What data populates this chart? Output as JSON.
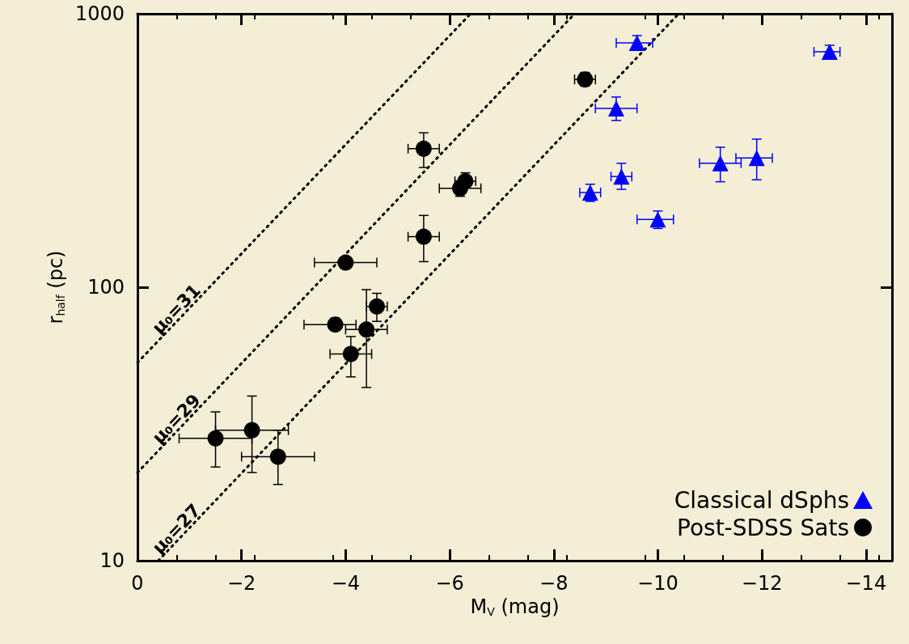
{
  "chart_data": {
    "type": "scatter",
    "xlabel": "M$_{V}$ (mag)",
    "ylabel": "r$_{half}$ (pc)",
    "xlim": [
      0,
      -14.5
    ],
    "xticks": [
      0,
      -2,
      -4,
      -6,
      -8,
      -10,
      -12,
      -14
    ],
    "ylim": [
      10,
      1000
    ],
    "yticks": [
      10,
      100,
      1000
    ],
    "log": "y",
    "grid": false,
    "legend": "bottom right",
    "series": [
      {
        "name": "Classical dSphs",
        "color": "#0000ff",
        "marker": "triangle",
        "x": [
          -9.6,
          -13.3,
          -9.2,
          -9.3,
          -8.7,
          -10.0,
          -11.2,
          -11.9
        ],
        "values": [
          782,
          726,
          451,
          254,
          222,
          177,
          284,
          297
        ],
        "errors": [
          [
            736,
            832
          ],
          [
            726,
            767
          ],
          [
            407,
            496
          ],
          [
            228,
            284
          ],
          [
            206,
            238
          ],
          [
            164,
            190
          ],
          [
            243,
            325
          ],
          [
            247,
            348
          ]
        ],
        "xerrors": [
          [
            -9.9,
            -9.2
          ],
          [
            -13.5,
            -13.0
          ],
          [
            -9.6,
            -8.8
          ],
          [
            -9.5,
            -9.1
          ],
          [
            -8.9,
            -8.5
          ],
          [
            -10.3,
            -9.6
          ],
          [
            -11.6,
            -10.8
          ],
          [
            -12.2,
            -11.5
          ]
        ]
      },
      {
        "name": "Post-SDSS Sats",
        "color": "#000000",
        "marker": "circle",
        "x": [
          -1.5,
          -2.2,
          -2.7,
          -3.8,
          -4.4,
          -4.1,
          -4.6,
          -4.0,
          -5.5,
          -5.5,
          -6.2,
          -6.3,
          -8.6
        ],
        "values": [
          28,
          30,
          24,
          73,
          70,
          57,
          85,
          123,
          321,
          153,
          230,
          244,
          575
        ],
        "errors": [
          [
            22,
            35
          ],
          [
            21,
            40
          ],
          [
            19,
            30
          ],
          [
            70,
            77
          ],
          [
            43,
            98
          ],
          [
            47,
            66
          ],
          [
            75,
            95
          ],
          null,
          [
            274,
            367
          ],
          [
            124,
            183
          ],
          [
            215,
            245
          ],
          [
            232,
            262
          ],
          [
            545,
            610
          ]
        ],
        "xerrors": [
          [
            -2.2,
            -0.8
          ],
          [
            -2.9,
            -1.5
          ],
          [
            -3.4,
            -2.0
          ],
          [
            -4.2,
            -3.2
          ],
          [
            -4.8,
            -4.0
          ],
          [
            -4.5,
            -3.7
          ],
          [
            -4.8,
            -4.4
          ],
          [
            -4.6,
            -3.4
          ],
          [
            -5.8,
            -5.2
          ],
          [
            -5.8,
            -5.2
          ],
          [
            -6.6,
            -5.8
          ],
          [
            -6.5,
            -6.1
          ],
          [
            -8.8,
            -8.4
          ]
        ]
      },
      {
        "type": "line",
        "color": "#000000",
        "marker": "none",
        "line_style": "dotted",
        "x": [
          0,
          -6.4
        ],
        "values": [
          53,
          1000
        ]
      },
      {
        "type": "line",
        "color": "#000000",
        "marker": "none",
        "line_style": "dotted",
        "x": [
          0,
          -8.4
        ],
        "values": [
          21,
          1000
        ]
      },
      {
        "type": "line",
        "color": "#000000",
        "marker": "none",
        "line_style": "dotted",
        "x": [
          -0.4,
          -10.4
        ],
        "values": [
          10,
          1000
        ]
      }
    ],
    "annotations": [
      "μ₀=31",
      "μ₀=29",
      "μ₀=27"
    ]
  }
}
